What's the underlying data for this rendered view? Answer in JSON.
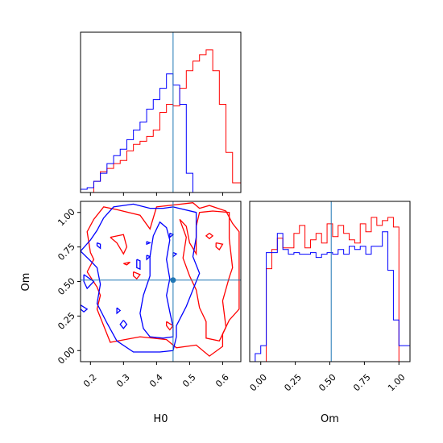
{
  "chart_data": {
    "type": "corner",
    "parameters": [
      "H0",
      "Om"
    ],
    "truth": {
      "H0": 0.45,
      "Om": 0.51
    },
    "truth_color": "#1f77b4",
    "ranges": {
      "H0": [
        0.17,
        0.655
      ],
      "Om": [
        -0.08,
        1.08
      ]
    },
    "ticks": {
      "H0": [
        0.2,
        0.3,
        0.4,
        0.5,
        0.6
      ],
      "H0_labels": [
        "0.2",
        "0.3",
        "0.4",
        "0.5",
        "0.6"
      ],
      "Om": [
        0.0,
        0.25,
        0.5,
        0.75,
        1.0
      ],
      "Om_labels": [
        "0.00",
        "0.25",
        "0.50",
        "0.75",
        "1.00"
      ]
    },
    "series": [
      {
        "color": "#ff0000",
        "hist_H0": {
          "edges": [
            0.17,
            0.19,
            0.21,
            0.23,
            0.25,
            0.27,
            0.29,
            0.31,
            0.33,
            0.35,
            0.37,
            0.39,
            0.41,
            0.43,
            0.45,
            0.47,
            0.49,
            0.51,
            0.53,
            0.55,
            0.57,
            0.59,
            0.61,
            0.63,
            0.655
          ],
          "counts": [
            0,
            0,
            0.07,
            0.13,
            0.15,
            0.18,
            0.2,
            0.26,
            0.3,
            0.32,
            0.35,
            0.39,
            0.5,
            0.55,
            0.54,
            0.65,
            0.76,
            0.82,
            0.86,
            0.89,
            0.76,
            0.55,
            0.25,
            0.06
          ]
        },
        "hist_Om": {
          "edges": [
            -0.08,
            -0.04,
            0.0,
            0.04,
            0.08,
            0.12,
            0.16,
            0.2,
            0.24,
            0.28,
            0.32,
            0.36,
            0.4,
            0.44,
            0.48,
            0.52,
            0.56,
            0.6,
            0.64,
            0.68,
            0.72,
            0.76,
            0.8,
            0.84,
            0.88,
            0.92,
            0.96,
            1.0,
            1.04,
            1.08
          ],
          "counts": [
            0,
            0,
            0,
            0.58,
            0.7,
            0.77,
            0.71,
            0.71,
            0.8,
            0.85,
            0.71,
            0.76,
            0.8,
            0.74,
            0.86,
            0.78,
            0.85,
            0.8,
            0.76,
            0.74,
            0.86,
            0.81,
            0.9,
            0.85,
            0.88,
            0.9,
            0.84,
            0,
            0
          ]
        },
        "contours": [
          [
            [
              0.19,
              0.57
            ],
            [
              0.22,
              0.46
            ],
            [
              0.23,
              0.4
            ],
            [
              0.22,
              0.3
            ],
            [
              0.26,
              0.06
            ],
            [
              0.35,
              0.1
            ],
            [
              0.43,
              0.08
            ],
            [
              0.46,
              0.02
            ],
            [
              0.52,
              0.04
            ],
            [
              0.56,
              -0.04
            ],
            [
              0.6,
              0.03
            ],
            [
              0.6,
              0.12
            ],
            [
              0.62,
              0.22
            ],
            [
              0.65,
              0.3
            ],
            [
              0.65,
              0.86
            ],
            [
              0.63,
              0.92
            ],
            [
              0.61,
              1.01
            ],
            [
              0.56,
              1.05
            ],
            [
              0.53,
              1.03
            ],
            [
              0.51,
              1.07
            ],
            [
              0.4,
              1.04
            ],
            [
              0.38,
              0.88
            ],
            [
              0.35,
              0.98
            ],
            [
              0.28,
              1.02
            ],
            [
              0.24,
              1.04
            ],
            [
              0.21,
              0.95
            ],
            [
              0.19,
              0.86
            ],
            [
              0.2,
              0.71
            ],
            [
              0.21,
              0.66
            ],
            [
              0.19,
              0.57
            ]
          ],
          [
            [
              0.47,
              0.95
            ],
            [
              0.49,
              0.82
            ],
            [
              0.48,
              0.67
            ],
            [
              0.5,
              0.54
            ],
            [
              0.52,
              0.44
            ],
            [
              0.53,
              0.31
            ],
            [
              0.55,
              0.21
            ],
            [
              0.55,
              0.09
            ],
            [
              0.59,
              0.07
            ],
            [
              0.61,
              0.17
            ],
            [
              0.6,
              0.36
            ],
            [
              0.62,
              0.53
            ],
            [
              0.63,
              0.6
            ],
            [
              0.62,
              0.81
            ],
            [
              0.62,
              1.0
            ],
            [
              0.57,
              1.01
            ],
            [
              0.53,
              1.0
            ],
            [
              0.52,
              0.9
            ],
            [
              0.52,
              0.7
            ],
            [
              0.5,
              0.78
            ],
            [
              0.49,
              0.9
            ],
            [
              0.47,
              0.95
            ]
          ],
          [
            [
              0.26,
              0.82
            ],
            [
              0.3,
              0.84
            ],
            [
              0.31,
              0.75
            ],
            [
              0.3,
              0.7
            ],
            [
              0.28,
              0.78
            ],
            [
              0.26,
              0.82
            ]
          ],
          [
            [
              0.3,
              0.63
            ],
            [
              0.32,
              0.64
            ],
            [
              0.31,
              0.62
            ],
            [
              0.3,
              0.63
            ]
          ],
          [
            [
              0.33,
              0.57
            ],
            [
              0.35,
              0.55
            ],
            [
              0.34,
              0.52
            ],
            [
              0.33,
              0.54
            ],
            [
              0.33,
              0.57
            ]
          ],
          [
            [
              0.56,
              0.85
            ],
            [
              0.57,
              0.83
            ],
            [
              0.56,
              0.81
            ],
            [
              0.55,
              0.83
            ],
            [
              0.56,
              0.85
            ]
          ],
          [
            [
              0.58,
              0.78
            ],
            [
              0.6,
              0.77
            ],
            [
              0.59,
              0.73
            ],
            [
              0.58,
              0.75
            ],
            [
              0.58,
              0.78
            ]
          ],
          [
            [
              0.43,
              0.21
            ],
            [
              0.45,
              0.18
            ],
            [
              0.44,
              0.15
            ],
            [
              0.43,
              0.18
            ],
            [
              0.43,
              0.21
            ]
          ]
        ]
      },
      {
        "color": "#0000ff",
        "hist_H0": {
          "edges": [
            0.17,
            0.19,
            0.21,
            0.23,
            0.25,
            0.27,
            0.29,
            0.31,
            0.33,
            0.35,
            0.37,
            0.39,
            0.41,
            0.43,
            0.45,
            0.47,
            0.49,
            0.51,
            0.53,
            0.55,
            0.57,
            0.59,
            0.61,
            0.63,
            0.655
          ],
          "counts": [
            0.02,
            0.03,
            0.07,
            0.12,
            0.18,
            0.23,
            0.27,
            0.33,
            0.39,
            0.44,
            0.52,
            0.58,
            0.65,
            0.74,
            0.67,
            0.55,
            0.12,
            0,
            0,
            0,
            0,
            0,
            0,
            0
          ]
        },
        "hist_Om": {
          "edges": [
            -0.08,
            -0.04,
            0.0,
            0.04,
            0.08,
            0.12,
            0.16,
            0.2,
            0.24,
            0.28,
            0.32,
            0.36,
            0.4,
            0.44,
            0.48,
            0.52,
            0.56,
            0.6,
            0.64,
            0.68,
            0.72,
            0.76,
            0.8,
            0.84,
            0.88,
            0.92,
            0.96,
            1.0,
            1.04,
            1.08
          ],
          "counts": [
            0,
            0.05,
            0.1,
            0.68,
            0.68,
            0.8,
            0.7,
            0.67,
            0.68,
            0.67,
            0.67,
            0.68,
            0.65,
            0.67,
            0.68,
            0.67,
            0.7,
            0.67,
            0.72,
            0.7,
            0.72,
            0.67,
            0.72,
            0.72,
            0.81,
            0.57,
            0.26,
            0.1,
            0.1
          ]
        },
        "contours": [
          [
            [
              0.17,
              0.72
            ],
            [
              0.2,
              0.65
            ],
            [
              0.22,
              0.6
            ],
            [
              0.23,
              0.48
            ],
            [
              0.22,
              0.34
            ],
            [
              0.25,
              0.2
            ],
            [
              0.28,
              0.07
            ],
            [
              0.33,
              -0.01
            ],
            [
              0.41,
              -0.01
            ],
            [
              0.45,
              0.0
            ],
            [
              0.46,
              0.1
            ],
            [
              0.46,
              0.18
            ],
            [
              0.49,
              0.32
            ],
            [
              0.51,
              0.44
            ],
            [
              0.53,
              0.56
            ],
            [
              0.51,
              0.68
            ],
            [
              0.52,
              0.82
            ],
            [
              0.52,
              1.0
            ],
            [
              0.45,
              1.04
            ],
            [
              0.42,
              1.03
            ],
            [
              0.38,
              1.03
            ],
            [
              0.33,
              1.06
            ],
            [
              0.27,
              1.04
            ],
            [
              0.24,
              0.96
            ],
            [
              0.22,
              0.87
            ],
            [
              0.2,
              0.8
            ],
            [
              0.17,
              0.72
            ]
          ],
          [
            [
              0.42,
              0.09
            ],
            [
              0.45,
              0.1
            ],
            [
              0.45,
              0.17
            ],
            [
              0.44,
              0.28
            ],
            [
              0.43,
              0.4
            ],
            [
              0.44,
              0.52
            ],
            [
              0.43,
              0.66
            ],
            [
              0.44,
              0.8
            ],
            [
              0.43,
              0.89
            ],
            [
              0.41,
              0.93
            ],
            [
              0.39,
              0.83
            ],
            [
              0.38,
              0.68
            ],
            [
              0.38,
              0.54
            ],
            [
              0.36,
              0.4
            ],
            [
              0.35,
              0.27
            ],
            [
              0.36,
              0.16
            ],
            [
              0.38,
              0.1
            ],
            [
              0.42,
              0.09
            ]
          ],
          [
            [
              0.22,
              0.78
            ],
            [
              0.23,
              0.77
            ],
            [
              0.23,
              0.74
            ],
            [
              0.22,
              0.76
            ],
            [
              0.22,
              0.78
            ]
          ],
          [
            [
              0.18,
              0.55
            ],
            [
              0.21,
              0.5
            ],
            [
              0.19,
              0.45
            ],
            [
              0.18,
              0.5
            ],
            [
              0.18,
              0.55
            ]
          ],
          [
            [
              0.17,
              0.33
            ],
            [
              0.19,
              0.3
            ],
            [
              0.18,
              0.28
            ],
            [
              0.17,
              0.3
            ],
            [
              0.17,
              0.33
            ]
          ],
          [
            [
              0.28,
              0.31
            ],
            [
              0.29,
              0.29
            ],
            [
              0.28,
              0.27
            ],
            [
              0.28,
              0.31
            ]
          ],
          [
            [
              0.3,
              0.22
            ],
            [
              0.31,
              0.19
            ],
            [
              0.3,
              0.16
            ],
            [
              0.29,
              0.19
            ],
            [
              0.3,
              0.22
            ]
          ],
          [
            [
              0.37,
              0.69
            ],
            [
              0.38,
              0.68
            ],
            [
              0.37,
              0.66
            ],
            [
              0.37,
              0.69
            ]
          ],
          [
            [
              0.37,
              0.79
            ],
            [
              0.38,
              0.78
            ],
            [
              0.37,
              0.77
            ],
            [
              0.37,
              0.79
            ]
          ],
          [
            [
              0.34,
              0.66
            ],
            [
              0.35,
              0.65
            ],
            [
              0.35,
              0.59
            ],
            [
              0.34,
              0.6
            ],
            [
              0.34,
              0.66
            ]
          ],
          [
            [
              0.44,
              0.85
            ],
            [
              0.45,
              0.84
            ],
            [
              0.44,
              0.82
            ],
            [
              0.44,
              0.85
            ]
          ],
          [
            [
              0.45,
              0.71
            ],
            [
              0.46,
              0.7
            ],
            [
              0.45,
              0.68
            ],
            [
              0.45,
              0.71
            ]
          ]
        ]
      }
    ],
    "xlabels": {
      "H0": "H0",
      "Om": "Om"
    },
    "ylabel": "Om"
  }
}
